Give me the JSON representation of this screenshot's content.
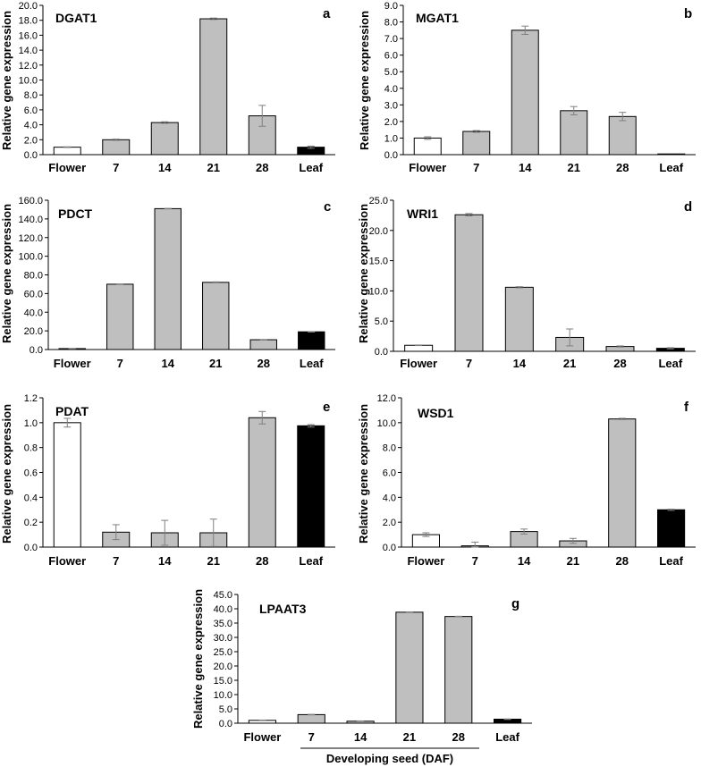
{
  "colors": {
    "flower": "#ffffff",
    "seed": "#bfbfbf",
    "leaf": "#000000",
    "axis": "#000000",
    "error": "#7f7f7f"
  },
  "chart_data": [
    {
      "type": "bar",
      "panel": "a",
      "title": "DGAT1",
      "ylabel": "Relative gene expression",
      "categories": [
        "Flower",
        "7",
        "14",
        "21",
        "28",
        "Leaf"
      ],
      "values": [
        1.0,
        2.0,
        4.3,
        18.2,
        5.2,
        1.0
      ],
      "errors": [
        0.05,
        0.08,
        0.1,
        0.1,
        1.4,
        0.15
      ],
      "ylim": [
        0,
        20
      ],
      "ystep": 2,
      "decimals": 1
    },
    {
      "type": "bar",
      "panel": "b",
      "title": "MGAT1",
      "ylabel": "Relative gene expression",
      "categories": [
        "Flower",
        "7",
        "14",
        "21",
        "28",
        "Leaf"
      ],
      "values": [
        1.0,
        1.4,
        7.5,
        2.65,
        2.3,
        0.0
      ],
      "errors": [
        0.08,
        0.05,
        0.25,
        0.25,
        0.25,
        0.0
      ],
      "ylim": [
        0,
        9
      ],
      "ystep": 1,
      "decimals": 1
    },
    {
      "type": "bar",
      "panel": "c",
      "title": "PDCT",
      "ylabel": "Relative gene expression",
      "categories": [
        "Flower",
        "7",
        "14",
        "21",
        "28",
        "Leaf"
      ],
      "values": [
        1.0,
        70.0,
        151.0,
        72.0,
        10.5,
        19.0
      ],
      "errors": [
        0.1,
        0.3,
        0.3,
        0.5,
        0.3,
        0.3
      ],
      "ylim": [
        0,
        160
      ],
      "ystep": 20,
      "decimals": 1
    },
    {
      "type": "bar",
      "panel": "d",
      "title": "WRI1",
      "ylabel": "Relative gene expression",
      "categories": [
        "Flower",
        "7",
        "14",
        "21",
        "28",
        "Leaf"
      ],
      "values": [
        1.0,
        22.6,
        10.6,
        2.3,
        0.8,
        0.5
      ],
      "errors": [
        0.05,
        0.2,
        0.1,
        1.4,
        0.1,
        0.1
      ],
      "ylim": [
        0,
        25
      ],
      "ystep": 5,
      "decimals": 1
    },
    {
      "type": "bar",
      "panel": "e",
      "title": "PDAT",
      "ylabel": "Relative gene expression",
      "categories": [
        "Flower",
        "7",
        "14",
        "21",
        "28",
        "Leaf"
      ],
      "values": [
        1.0,
        0.12,
        0.115,
        0.115,
        1.04,
        0.975
      ],
      "errors": [
        0.035,
        0.06,
        0.1,
        0.11,
        0.05,
        0.01
      ],
      "ylim": [
        0,
        1.2
      ],
      "ystep": 0.2,
      "decimals": 1
    },
    {
      "type": "bar",
      "panel": "f",
      "title": "WSD1",
      "ylabel": "Relative gene expression",
      "categories": [
        "Flower",
        "7",
        "14",
        "21",
        "28",
        "Leaf"
      ],
      "values": [
        1.0,
        0.1,
        1.25,
        0.5,
        10.3,
        3.0
      ],
      "errors": [
        0.15,
        0.3,
        0.2,
        0.2,
        0.05,
        0.05
      ],
      "ylim": [
        0,
        12
      ],
      "ystep": 2,
      "decimals": 1
    },
    {
      "type": "bar",
      "panel": "g",
      "title": "LPAAT3",
      "ylabel": "Relative gene expression",
      "xlabel": "Developing seed (DAF)",
      "categories": [
        "Flower",
        "7",
        "14",
        "21",
        "28",
        "Leaf"
      ],
      "values": [
        1.0,
        3.0,
        0.7,
        38.8,
        37.3,
        1.4
      ],
      "errors": [
        0.1,
        0.1,
        0.1,
        0.1,
        0.1,
        0.1
      ],
      "ylim": [
        0,
        45
      ],
      "ystep": 5,
      "decimals": 1
    }
  ]
}
